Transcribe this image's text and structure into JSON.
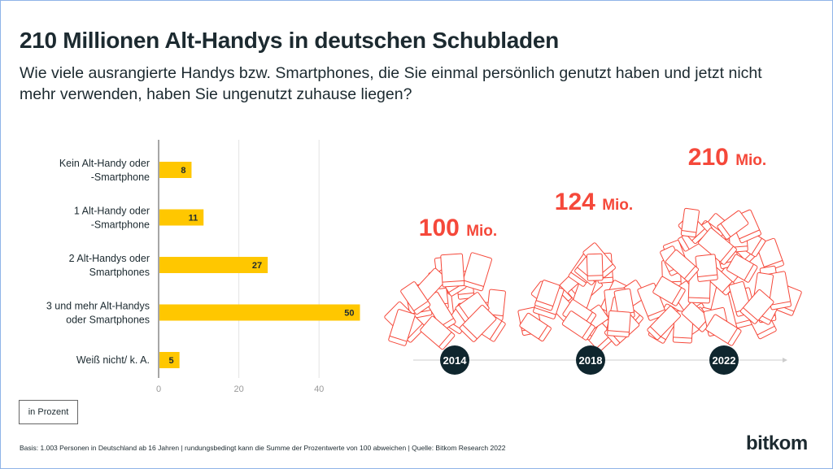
{
  "title": "210 Millionen Alt-Handys in deutschen Schubladen",
  "subtitle": "Wie viele ausrangierte Handys bzw. Smartphones, die Sie einmal persönlich genutzt haben und jetzt nicht mehr verwenden, haben Sie ungenutzt zuhause liegen?",
  "unit_label": "in Prozent",
  "footnote": "Basis: 1.003 Personen in Deutschland ab 16 Jahren | rundungsbedingt kann die Summe der Prozentwerte von 100 abweichen | Quelle: Bitkom Research 2022",
  "logo": "bitkom",
  "colors": {
    "bar": "#ffc700",
    "accent": "#f5483a",
    "dark": "#0f262e",
    "grid": "#e3e3e3"
  },
  "chart_data": [
    {
      "type": "bar",
      "orientation": "horizontal",
      "categories": [
        [
          "Kein Alt-Handy oder",
          "-Smartphone"
        ],
        [
          "1 Alt-Handy oder",
          "-Smartphone"
        ],
        [
          "2 Alt-Handys oder",
          "Smartphones"
        ],
        [
          "3 und mehr Alt-Handys",
          "oder Smartphones"
        ],
        [
          "Weiß nicht/ k. A."
        ]
      ],
      "values": [
        8,
        11,
        27,
        50,
        5
      ],
      "xlim": [
        0,
        50
      ],
      "xticks": [
        "0",
        "20",
        "40"
      ],
      "grid": true,
      "xlabel": "in Prozent"
    },
    {
      "type": "pictogram",
      "categories": [
        "2014",
        "2018",
        "2022"
      ],
      "values": [
        100,
        124,
        210
      ],
      "labels": [
        {
          "num": "100",
          "unit": "Mio."
        },
        {
          "num": "124",
          "unit": "Mio."
        },
        {
          "num": "210",
          "unit": "Mio."
        }
      ]
    }
  ]
}
